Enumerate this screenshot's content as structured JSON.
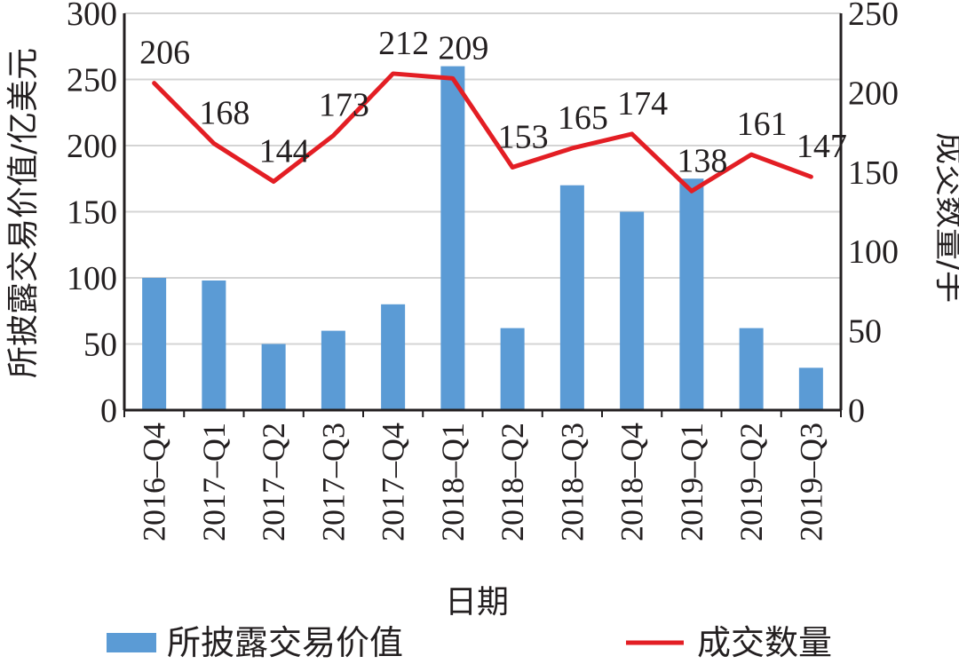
{
  "chart_data": {
    "type": "bar",
    "categories": [
      "2016–Q4",
      "2017–Q1",
      "2017–Q2",
      "2017–Q3",
      "2017–Q4",
      "2018–Q1",
      "2018–Q2",
      "2018–Q3",
      "2018–Q4",
      "2019–Q1",
      "2019–Q2",
      "2019–Q3"
    ],
    "series": [
      {
        "name": "所披露交易价值",
        "type": "bar",
        "axis": "left",
        "color": "#5b9bd5",
        "values": [
          100,
          98,
          50,
          60,
          80,
          260,
          62,
          170,
          150,
          175,
          62,
          32
        ]
      },
      {
        "name": "成交数量",
        "type": "line",
        "axis": "right",
        "color": "#e31e24",
        "values": [
          206,
          168,
          144,
          173,
          212,
          209,
          153,
          165,
          174,
          138,
          161,
          147
        ]
      }
    ],
    "xlabel": "日期",
    "ylabel": "所披露交易价值/亿美元",
    "y2label": "成交数量/手",
    "ylim": [
      0,
      300
    ],
    "y2lim": [
      0,
      250
    ],
    "yticks": [
      "0",
      "50",
      "100",
      "150",
      "200",
      "250",
      "300"
    ],
    "y2ticks": [
      "0",
      "50",
      "100",
      "150",
      "200",
      "250"
    ],
    "data_labels": [
      "206",
      "168",
      "144",
      "173",
      "212",
      "209",
      "153",
      "165",
      "174",
      "138",
      "161",
      "147"
    ],
    "grid": "horizontal",
    "legend_position": "bottom"
  }
}
